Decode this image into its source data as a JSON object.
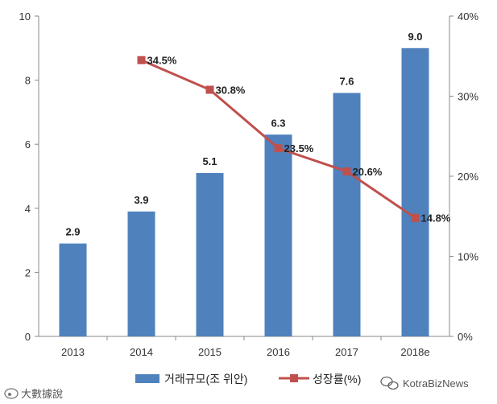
{
  "chart_data": {
    "type": "bar",
    "categories": [
      "2013",
      "2014",
      "2015",
      "2016",
      "2017",
      "2018e"
    ],
    "series": [
      {
        "name": "거래규모(조 위안)",
        "kind": "bar",
        "axis": "left",
        "values": [
          2.9,
          3.9,
          5.1,
          6.3,
          7.6,
          9.0
        ],
        "labels": [
          "2.9",
          "3.9",
          "5.1",
          "6.3",
          "7.6",
          "9.0"
        ],
        "color": "#4f81bd"
      },
      {
        "name": "성장률(%)",
        "kind": "line",
        "axis": "right",
        "values": [
          null,
          34.5,
          30.8,
          23.5,
          20.6,
          14.8
        ],
        "labels": [
          null,
          "34.5%",
          "30.8%",
          "23.5%",
          "20.6%",
          "14.8%"
        ],
        "color": "#c0504d"
      }
    ],
    "y_left": {
      "min": 0,
      "max": 10,
      "ticks": [
        0,
        2,
        4,
        6,
        8,
        10
      ],
      "tick_labels": [
        "0",
        "2",
        "4",
        "6",
        "8",
        "10"
      ]
    },
    "y_right": {
      "min": 0,
      "max": 40,
      "ticks": [
        0,
        10,
        20,
        30,
        40
      ],
      "tick_labels": [
        "0%",
        "10%",
        "20%",
        "30%",
        "40%"
      ]
    },
    "legend": {
      "placement": "bottom",
      "items": [
        "거래규모(조 위안)",
        "성장률(%)"
      ]
    },
    "grid": false,
    "title": "",
    "xlabel": "",
    "ylabel": ""
  },
  "watermarks": {
    "left": "大數據說",
    "right": "KotraBizNews"
  },
  "colors": {
    "bar": "#4f81bd",
    "line": "#c0504d",
    "axis": "#888888"
  }
}
